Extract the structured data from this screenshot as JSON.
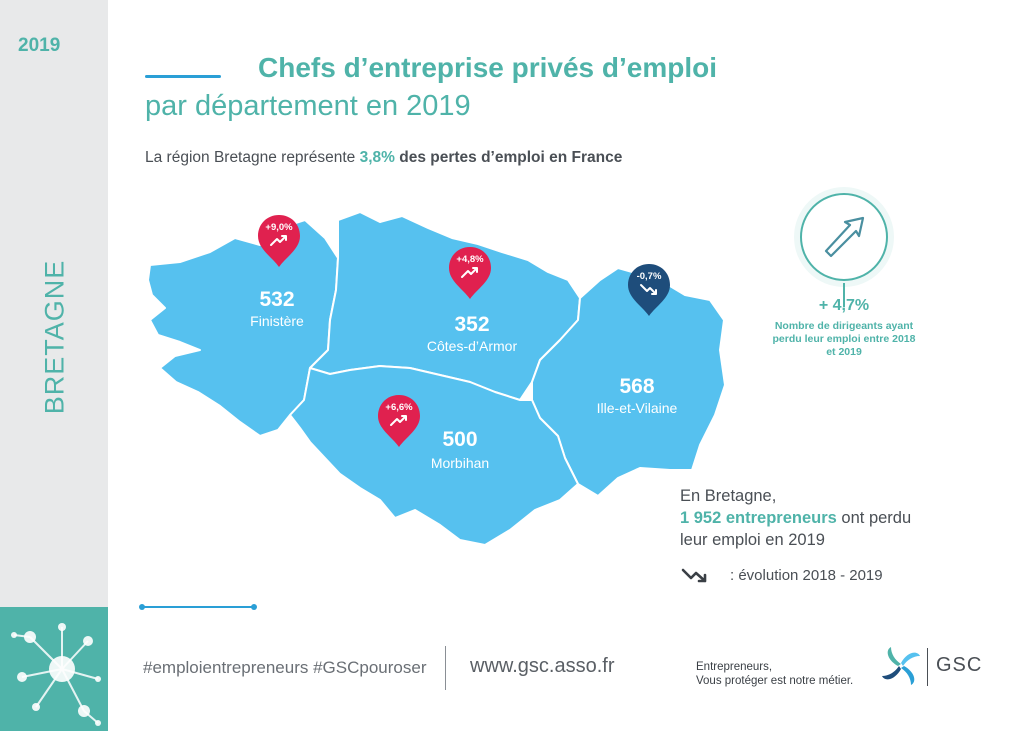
{
  "sidebar": {
    "year": "2019",
    "region": "BRETAGNE"
  },
  "header": {
    "title": "Chefs d’entreprise privés d’emploi",
    "subtitle": "par département en 2019"
  },
  "intro": {
    "prefix": "La région Bretagne représente ",
    "highlight": "3,8%",
    "suffix": " des pertes d’emploi en France"
  },
  "departments": [
    {
      "name": "Finistère",
      "value": "532",
      "change": "+9,0%",
      "trend": "up",
      "color": "#e0214f"
    },
    {
      "name": "Côtes-d’Armor",
      "value": "352",
      "change": "+4,8%",
      "trend": "up",
      "color": "#e0214f"
    },
    {
      "name": "Morbihan",
      "value": "500",
      "change": "+6,6%",
      "trend": "up",
      "color": "#e0214f"
    },
    {
      "name": "Ille-et-Vilaine",
      "value": "568",
      "change": "-0,7%",
      "trend": "down",
      "color": "#1e4d7b"
    }
  ],
  "kpi": {
    "icon": "arrow-up-right-icon",
    "value": "+ 4,7%",
    "description": "Nombre de dirigeants ayant perdu leur emploi entre 2018 et 2019"
  },
  "summary": {
    "line1": "En Bretagne,",
    "highlight": "1 952 entrepreneurs",
    "line2_suffix": " ont perdu",
    "line3": "leur emploi en 2019"
  },
  "legend": {
    "icon": "trend-arrow-icon",
    "text": ": évolution 2018 - 2019"
  },
  "footer": {
    "hashtags": "#emploientrepreneurs #GSCpouroser",
    "website": "www.gsc.asso.fr",
    "tagline_line1": "Entrepreneurs,",
    "tagline_line2": "Vous protéger est notre métier.",
    "brand": "GSC"
  },
  "colors": {
    "accent": "#4fb3a9",
    "map": "#56c1ef",
    "pin_up": "#e0214f",
    "pin_down": "#1e4d7b",
    "line": "#2a9fd6"
  }
}
